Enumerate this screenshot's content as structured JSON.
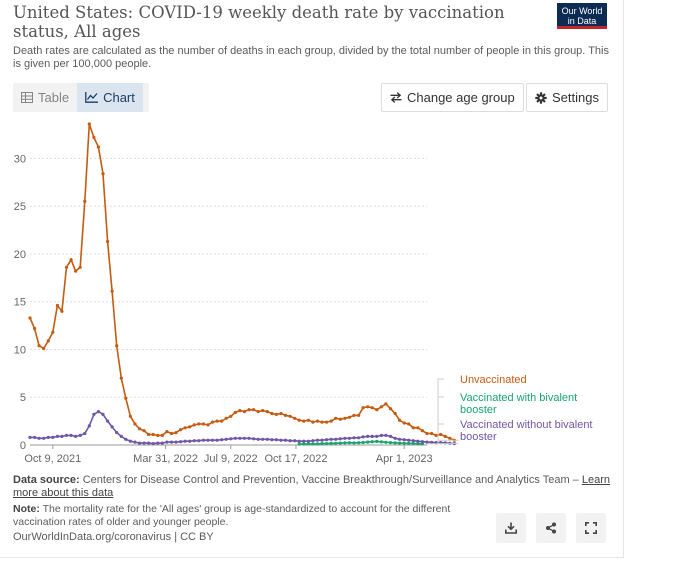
{
  "header": {
    "title": "United States: COVID-19 weekly death rate by vaccination status, All ages",
    "subtitle": "Death rates are calculated as the number of deaths in each group, divided by the total number of people in this group. This is given per 100,000 people.",
    "logo_line1": "Our World",
    "logo_line2": "in Data",
    "logo_color": "#0d2c53",
    "logo_accent": "#c4252d"
  },
  "controls": {
    "table_label": "Table",
    "chart_label": "Chart",
    "change_age_label": "Change age group",
    "settings_label": "Settings"
  },
  "footer": {
    "source_prefix": "Data source:",
    "source_text": "Centers for Disease Control and Prevention, Vaccine Breakthrough/Surveillance and Analytics Team –",
    "learn_more": "Learn more about this data",
    "note_prefix": "Note:",
    "note_text": "The mortality rate for the 'All ages' group is age-standardized to account for the different vaccination rates of older and younger people.",
    "url_text": "OurWorldInData.org/coronavirus | CC BY"
  },
  "icons": {
    "download": "download-icon",
    "share": "share-icon",
    "fullscreen": "fullscreen-icon"
  },
  "chart_data": {
    "type": "line",
    "title": "United States: COVID-19 weekly death rate by vaccination status, All ages",
    "xlabel": "",
    "ylabel": "",
    "ylim": [
      0,
      33.5
    ],
    "yticks": [
      0,
      5,
      10,
      15,
      20,
      25,
      30
    ],
    "xlim": [
      "2021-09-04",
      "2023-05-06"
    ],
    "xticks": [
      {
        "date": "2021-10-09",
        "label": "Oct 9, 2021"
      },
      {
        "date": "2022-03-31",
        "label": "Mar 31, 2022"
      },
      {
        "date": "2022-07-09",
        "label": "Jul 9, 2022"
      },
      {
        "date": "2022-10-17",
        "label": "Oct 17, 2022"
      },
      {
        "date": "2023-04-01",
        "label": "Apr 1, 2023"
      }
    ],
    "grid": true,
    "legend_position": "right",
    "series": [
      {
        "name": "Unvaccinated",
        "color": "#c55a11",
        "start": "2021-09-04",
        "step_days": 7,
        "values": [
          13.3,
          12.2,
          10.4,
          10.1,
          10.9,
          11.8,
          14.6,
          14.0,
          18.6,
          19.4,
          18.2,
          18.6,
          25.5,
          33.6,
          32.2,
          31.2,
          28.4,
          21.3,
          16.1,
          10.4,
          7.0,
          4.9,
          3.0,
          2.2,
          1.7,
          1.5,
          1.1,
          1.1,
          1.0,
          1.0,
          1.4,
          1.2,
          1.3,
          1.6,
          1.8,
          1.9,
          2.1,
          2.2,
          2.2,
          2.1,
          2.4,
          2.5,
          2.5,
          2.8,
          3.0,
          3.4,
          3.6,
          3.5,
          3.7,
          3.7,
          3.5,
          3.6,
          3.5,
          3.3,
          3.2,
          3.3,
          3.1,
          3.0,
          2.8,
          2.6,
          2.5,
          2.6,
          2.4,
          2.5,
          2.4,
          2.4,
          2.5,
          2.8,
          2.7,
          2.8,
          2.9,
          3.1,
          3.1,
          3.9,
          4.0,
          3.9,
          3.7,
          4.0,
          4.3,
          3.8,
          3.3,
          2.6,
          2.3,
          2.2,
          1.8,
          1.8,
          1.5,
          1.2,
          1.2,
          1.0,
          1.1,
          0.9,
          0.7,
          0.5
        ]
      },
      {
        "name": "Vaccinated with bivalent booster",
        "color": "#18a470",
        "start": "2022-10-22",
        "step_days": 7,
        "values": [
          0.1,
          0.1,
          0.12,
          0.12,
          0.12,
          0.15,
          0.15,
          0.17,
          0.18,
          0.2,
          0.22,
          0.24,
          0.22,
          0.24,
          0.26,
          0.3,
          0.35,
          0.38,
          0.32,
          0.28,
          0.25,
          0.22,
          0.2,
          0.18,
          0.18,
          0.16,
          0.14,
          0.12
        ]
      },
      {
        "name": "Vaccinated without bivalent booster",
        "color": "#6e57a7",
        "start": "2021-09-04",
        "step_days": 7,
        "values": [
          0.8,
          0.8,
          0.7,
          0.7,
          0.8,
          0.8,
          0.9,
          0.9,
          1.0,
          1.0,
          0.9,
          1.0,
          1.2,
          2.0,
          3.2,
          3.5,
          3.2,
          2.5,
          1.9,
          1.3,
          0.9,
          0.6,
          0.4,
          0.3,
          0.2,
          0.2,
          0.2,
          0.15,
          0.2,
          0.2,
          0.3,
          0.3,
          0.3,
          0.35,
          0.4,
          0.4,
          0.45,
          0.45,
          0.5,
          0.5,
          0.5,
          0.5,
          0.55,
          0.6,
          0.65,
          0.7,
          0.7,
          0.7,
          0.7,
          0.65,
          0.6,
          0.6,
          0.6,
          0.55,
          0.55,
          0.5,
          0.5,
          0.45,
          0.45,
          0.4,
          0.4,
          0.4,
          0.45,
          0.5,
          0.5,
          0.55,
          0.6,
          0.6,
          0.65,
          0.7,
          0.7,
          0.75,
          0.75,
          0.85,
          0.9,
          0.9,
          0.9,
          1.0,
          1.0,
          0.9,
          0.7,
          0.6,
          0.55,
          0.5,
          0.45,
          0.4,
          0.35,
          0.3,
          0.28,
          0.25,
          0.25,
          0.22,
          0.18,
          0.15
        ]
      }
    ]
  }
}
